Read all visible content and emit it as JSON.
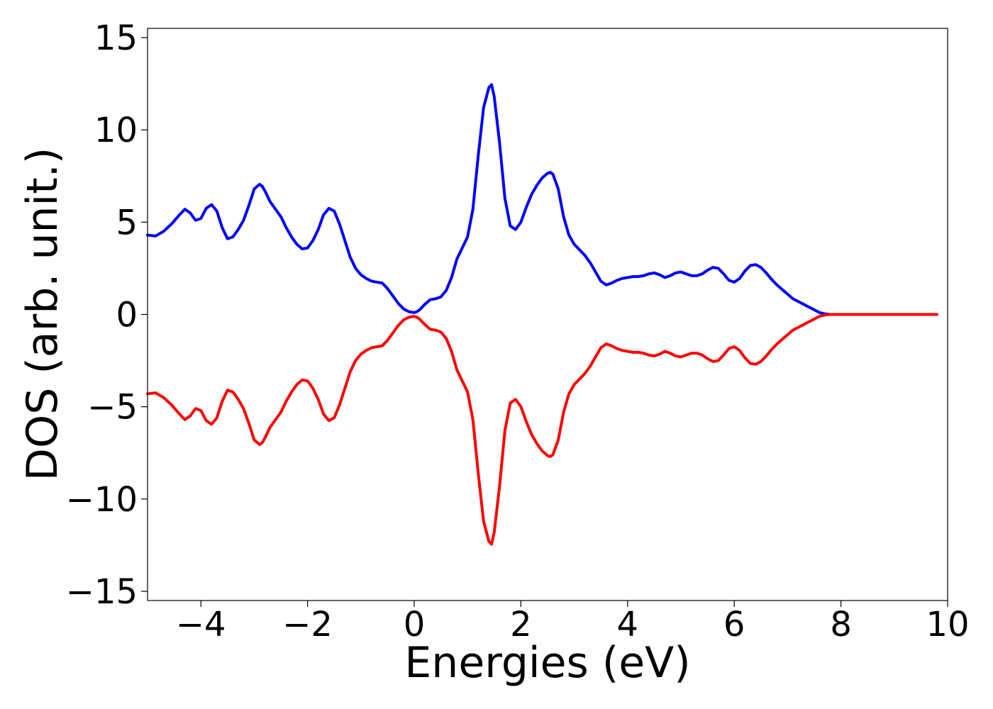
{
  "chart_data": {
    "type": "line",
    "title": "",
    "xlabel": "Energies (eV)",
    "ylabel": "DOS (arb. unit.)",
    "xlim": [
      -5,
      10
    ],
    "ylim": [
      -15.5,
      15.5
    ],
    "xticks": [
      -4,
      -2,
      0,
      2,
      4,
      6,
      8,
      10
    ],
    "yticks": [
      15,
      10,
      5,
      0,
      -5,
      -10,
      -15
    ],
    "grid": false,
    "legend": "none",
    "series": [
      {
        "color": "#0000ff",
        "x": [
          -5.0,
          -4.85,
          -4.7,
          -4.55,
          -4.4,
          -4.3,
          -4.2,
          -4.1,
          -4.0,
          -3.9,
          -3.8,
          -3.7,
          -3.6,
          -3.5,
          -3.4,
          -3.3,
          -3.2,
          -3.1,
          -3.0,
          -2.9,
          -2.85,
          -2.8,
          -2.7,
          -2.6,
          -2.5,
          -2.4,
          -2.3,
          -2.2,
          -2.1,
          -2.0,
          -1.9,
          -1.8,
          -1.7,
          -1.6,
          -1.5,
          -1.4,
          -1.3,
          -1.2,
          -1.1,
          -1.0,
          -0.9,
          -0.8,
          -0.7,
          -0.6,
          -0.5,
          -0.4,
          -0.3,
          -0.2,
          -0.1,
          0.0,
          0.05,
          0.1,
          0.2,
          0.3,
          0.4,
          0.5,
          0.6,
          0.7,
          0.8,
          0.9,
          1.0,
          1.1,
          1.2,
          1.3,
          1.4,
          1.45,
          1.5,
          1.6,
          1.7,
          1.8,
          1.9,
          2.0,
          2.1,
          2.2,
          2.3,
          2.4,
          2.5,
          2.55,
          2.6,
          2.7,
          2.8,
          2.9,
          3.0,
          3.1,
          3.2,
          3.3,
          3.4,
          3.5,
          3.6,
          3.7,
          3.8,
          3.9,
          4.0,
          4.1,
          4.2,
          4.3,
          4.4,
          4.5,
          4.6,
          4.7,
          4.8,
          4.9,
          5.0,
          5.1,
          5.2,
          5.3,
          5.4,
          5.5,
          5.6,
          5.7,
          5.8,
          5.9,
          6.0,
          6.1,
          6.2,
          6.3,
          6.4,
          6.5,
          6.6,
          6.7,
          6.8,
          6.9,
          7.0,
          7.1,
          7.2,
          7.3,
          7.4,
          7.5,
          7.6,
          7.7,
          7.8,
          8.0,
          8.5,
          9.0,
          9.5,
          9.8
        ],
        "y": [
          4.3,
          4.25,
          4.5,
          4.9,
          5.4,
          5.7,
          5.5,
          5.1,
          5.2,
          5.75,
          5.95,
          5.6,
          4.7,
          4.1,
          4.2,
          4.6,
          5.1,
          5.9,
          6.8,
          7.05,
          6.95,
          6.7,
          6.1,
          5.7,
          5.3,
          4.7,
          4.2,
          3.8,
          3.55,
          3.6,
          4.0,
          4.6,
          5.4,
          5.75,
          5.6,
          4.9,
          4.0,
          3.1,
          2.5,
          2.15,
          1.95,
          1.8,
          1.75,
          1.7,
          1.4,
          1.0,
          0.6,
          0.3,
          0.15,
          0.1,
          0.15,
          0.25,
          0.55,
          0.8,
          0.85,
          0.95,
          1.3,
          2.0,
          3.0,
          3.6,
          4.2,
          5.7,
          8.6,
          11.2,
          12.3,
          12.45,
          11.8,
          9.3,
          6.3,
          4.8,
          4.6,
          5.0,
          5.8,
          6.5,
          7.0,
          7.4,
          7.65,
          7.7,
          7.6,
          6.8,
          5.3,
          4.3,
          3.8,
          3.5,
          3.2,
          2.8,
          2.3,
          1.8,
          1.6,
          1.7,
          1.85,
          1.95,
          2.0,
          2.05,
          2.05,
          2.1,
          2.2,
          2.25,
          2.15,
          2.0,
          2.1,
          2.25,
          2.3,
          2.2,
          2.1,
          2.1,
          2.2,
          2.4,
          2.55,
          2.5,
          2.2,
          1.85,
          1.75,
          1.95,
          2.35,
          2.65,
          2.7,
          2.55,
          2.25,
          1.9,
          1.6,
          1.35,
          1.1,
          0.85,
          0.7,
          0.55,
          0.4,
          0.25,
          0.1,
          0.03,
          0.0,
          0.0,
          0.0,
          0.0,
          0.0,
          0.0
        ]
      },
      {
        "color": "#ff0000",
        "x": [
          -5.0,
          -4.85,
          -4.7,
          -4.55,
          -4.4,
          -4.3,
          -4.2,
          -4.1,
          -4.0,
          -3.9,
          -3.8,
          -3.7,
          -3.6,
          -3.5,
          -3.4,
          -3.3,
          -3.2,
          -3.1,
          -3.0,
          -2.9,
          -2.85,
          -2.8,
          -2.7,
          -2.6,
          -2.5,
          -2.4,
          -2.3,
          -2.2,
          -2.1,
          -2.0,
          -1.9,
          -1.8,
          -1.7,
          -1.6,
          -1.5,
          -1.4,
          -1.3,
          -1.2,
          -1.1,
          -1.0,
          -0.9,
          -0.8,
          -0.7,
          -0.6,
          -0.5,
          -0.4,
          -0.3,
          -0.2,
          -0.1,
          0.0,
          0.05,
          0.1,
          0.2,
          0.3,
          0.4,
          0.5,
          0.6,
          0.7,
          0.8,
          0.9,
          1.0,
          1.1,
          1.2,
          1.3,
          1.4,
          1.45,
          1.5,
          1.6,
          1.7,
          1.8,
          1.9,
          2.0,
          2.1,
          2.2,
          2.3,
          2.4,
          2.5,
          2.55,
          2.6,
          2.7,
          2.8,
          2.9,
          3.0,
          3.1,
          3.2,
          3.3,
          3.4,
          3.5,
          3.6,
          3.7,
          3.8,
          3.9,
          4.0,
          4.1,
          4.2,
          4.3,
          4.4,
          4.5,
          4.6,
          4.7,
          4.8,
          4.9,
          5.0,
          5.1,
          5.2,
          5.3,
          5.4,
          5.5,
          5.6,
          5.7,
          5.8,
          5.9,
          6.0,
          6.1,
          6.2,
          6.3,
          6.4,
          6.5,
          6.6,
          6.7,
          6.8,
          6.9,
          7.0,
          7.1,
          7.2,
          7.3,
          7.4,
          7.5,
          7.6,
          7.7,
          7.8,
          8.0,
          8.5,
          9.0,
          9.5,
          9.8
        ],
        "y": [
          -4.3,
          -4.25,
          -4.5,
          -4.9,
          -5.4,
          -5.7,
          -5.5,
          -5.1,
          -5.2,
          -5.75,
          -5.95,
          -5.6,
          -4.7,
          -4.1,
          -4.2,
          -4.6,
          -5.1,
          -5.9,
          -6.8,
          -7.05,
          -6.95,
          -6.7,
          -6.1,
          -5.7,
          -5.3,
          -4.7,
          -4.2,
          -3.8,
          -3.55,
          -3.6,
          -4.0,
          -4.6,
          -5.4,
          -5.75,
          -5.6,
          -4.9,
          -4.0,
          -3.1,
          -2.5,
          -2.15,
          -1.95,
          -1.8,
          -1.75,
          -1.7,
          -1.4,
          -1.0,
          -0.6,
          -0.3,
          -0.15,
          -0.1,
          -0.15,
          -0.25,
          -0.55,
          -0.8,
          -0.85,
          -0.95,
          -1.3,
          -2.0,
          -3.0,
          -3.6,
          -4.2,
          -5.7,
          -8.6,
          -11.2,
          -12.3,
          -12.45,
          -11.8,
          -9.3,
          -6.3,
          -4.8,
          -4.6,
          -5.0,
          -5.8,
          -6.5,
          -7.0,
          -7.4,
          -7.65,
          -7.7,
          -7.6,
          -6.8,
          -5.3,
          -4.3,
          -3.8,
          -3.5,
          -3.2,
          -2.8,
          -2.3,
          -1.8,
          -1.6,
          -1.7,
          -1.85,
          -1.95,
          -2.0,
          -2.05,
          -2.05,
          -2.1,
          -2.2,
          -2.25,
          -2.15,
          -2.0,
          -2.1,
          -2.25,
          -2.3,
          -2.2,
          -2.1,
          -2.1,
          -2.2,
          -2.4,
          -2.55,
          -2.5,
          -2.2,
          -1.85,
          -1.75,
          -1.95,
          -2.35,
          -2.65,
          -2.7,
          -2.55,
          -2.25,
          -1.9,
          -1.6,
          -1.35,
          -1.1,
          -0.85,
          -0.7,
          -0.55,
          -0.4,
          -0.25,
          -0.1,
          -0.03,
          0.0,
          0.0,
          0.0,
          0.0,
          0.0,
          0.0
        ]
      }
    ]
  }
}
